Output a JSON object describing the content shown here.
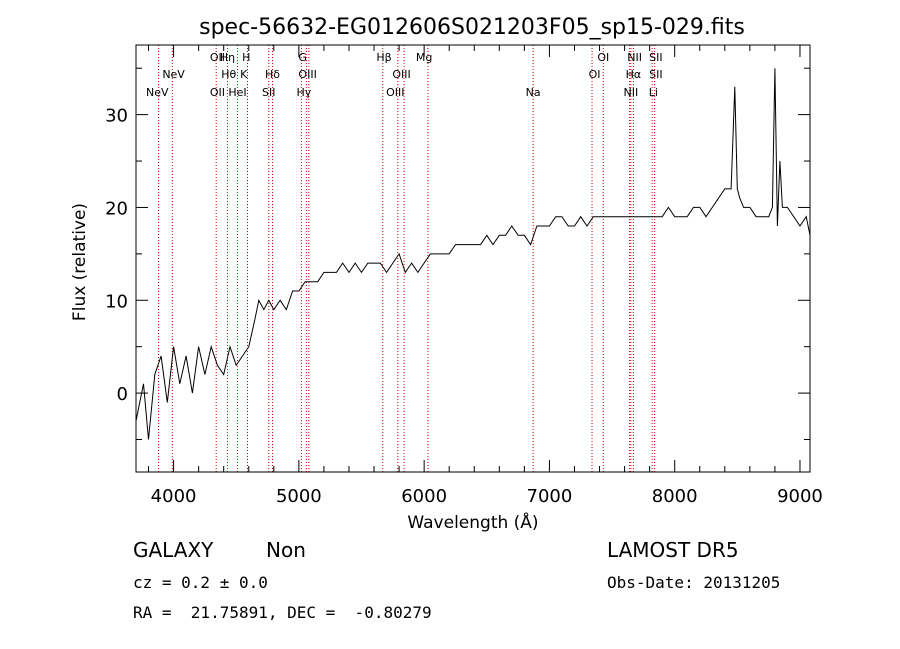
{
  "chart_data": {
    "type": "line",
    "title": "spec-56632-EG012606S021203F05_sp15-029.fits",
    "xlabel": "Wavelength (Å)",
    "ylabel": "Flux (relative)",
    "xlim": [
      3700,
      9080
    ],
    "ylim": [
      -8.5,
      37.5
    ],
    "xticks": [
      4000,
      5000,
      6000,
      7000,
      8000,
      9000
    ],
    "yticks": [
      0,
      10,
      20,
      30
    ],
    "grid": false,
    "series": [
      {
        "x": [
          3700,
          3760,
          3800,
          3850,
          3900,
          3950,
          4000,
          4050,
          4100,
          4150,
          4200,
          4250,
          4300,
          4350,
          4400,
          4450,
          4500,
          4550,
          4600,
          4650,
          4680,
          4720,
          4760,
          4800,
          4850,
          4900,
          4950,
          5000,
          5050,
          5100,
          5150,
          5200,
          5250,
          5300,
          5350,
          5400,
          5450,
          5500,
          5550,
          5600,
          5650,
          5700,
          5750,
          5800,
          5850,
          5900,
          5950,
          6000,
          6050,
          6100,
          6150,
          6200,
          6250,
          6300,
          6350,
          6400,
          6450,
          6500,
          6550,
          6600,
          6650,
          6700,
          6750,
          6800,
          6850,
          6900,
          6950,
          7000,
          7050,
          7100,
          7150,
          7200,
          7250,
          7300,
          7350,
          7400,
          7450,
          7500,
          7550,
          7600,
          7650,
          7700,
          7750,
          7800,
          7850,
          7900,
          7950,
          8000,
          8050,
          8100,
          8150,
          8200,
          8250,
          8300,
          8350,
          8400,
          8450,
          8480,
          8500,
          8520,
          8550,
          8600,
          8650,
          8700,
          8750,
          8780,
          8800,
          8820,
          8840,
          8860,
          8900,
          8950,
          9000,
          9050,
          9080
        ],
        "y": [
          -3,
          1,
          -5,
          2,
          4,
          -1,
          5,
          1,
          4,
          0,
          5,
          2,
          5,
          3,
          2,
          5,
          3,
          4,
          5,
          8,
          10,
          9,
          10,
          9,
          10,
          9,
          11,
          11,
          12,
          12,
          12,
          13,
          13,
          13,
          14,
          13,
          14,
          13,
          14,
          14,
          14,
          13,
          14,
          15,
          13,
          14,
          13,
          14,
          15,
          15,
          15,
          15,
          16,
          16,
          16,
          16,
          16,
          17,
          16,
          17,
          17,
          18,
          17,
          17,
          16,
          18,
          18,
          18,
          19,
          19,
          18,
          18,
          19,
          18,
          19,
          19,
          19,
          19,
          19,
          19,
          19,
          19,
          19,
          19,
          19,
          19,
          20,
          19,
          19,
          19,
          20,
          20,
          19,
          20,
          21,
          22,
          22,
          33,
          22,
          21,
          20,
          20,
          19,
          19,
          19,
          20,
          35,
          18,
          25,
          20,
          20,
          19,
          18,
          19,
          17
        ]
      }
    ],
    "spectral_lines": [
      {
        "label": "NeV",
        "wavelength": 3870,
        "row": 3
      },
      {
        "label": "NeV",
        "wavelength": 4000,
        "row": 2
      },
      {
        "label": "OII",
        "wavelength": 4350,
        "row": 1
      },
      {
        "label": "OII",
        "wavelength": 4350,
        "row": 3
      },
      {
        "label": "Hη",
        "wavelength": 4430,
        "row": 1
      },
      {
        "label": "Hθ",
        "wavelength": 4440,
        "row": 2
      },
      {
        "label": "HeI",
        "wavelength": 4510,
        "row": 3
      },
      {
        "label": "H",
        "wavelength": 4580,
        "row": 1
      },
      {
        "label": "K",
        "wavelength": 4560,
        "row": 2
      },
      {
        "label": "Hδ",
        "wavelength": 4790,
        "row": 2
      },
      {
        "label": "SII",
        "wavelength": 4760,
        "row": 3
      },
      {
        "label": "G",
        "wavelength": 5030,
        "row": 1
      },
      {
        "label": "OIII",
        "wavelength": 5070,
        "row": 2
      },
      {
        "label": "Hγ",
        "wavelength": 5040,
        "row": 3
      },
      {
        "label": "Hβ",
        "wavelength": 5680,
        "row": 1
      },
      {
        "label": "OIII",
        "wavelength": 5820,
        "row": 2
      },
      {
        "label": "OIII",
        "wavelength": 5770,
        "row": 3
      },
      {
        "label": "Mg",
        "wavelength": 6000,
        "row": 1
      },
      {
        "label": "Na",
        "wavelength": 6870,
        "row": 3
      },
      {
        "label": "OI",
        "wavelength": 7430,
        "row": 1
      },
      {
        "label": "OI",
        "wavelength": 7360,
        "row": 2
      },
      {
        "label": "NII",
        "wavelength": 7680,
        "row": 1
      },
      {
        "label": "Hα",
        "wavelength": 7670,
        "row": 2
      },
      {
        "label": "NII",
        "wavelength": 7650,
        "row": 3
      },
      {
        "label": "SII",
        "wavelength": 7850,
        "row": 1
      },
      {
        "label": "SII",
        "wavelength": 7850,
        "row": 2
      },
      {
        "label": "Li",
        "wavelength": 7830,
        "row": 3
      }
    ],
    "line_marker_wavelengths": [
      3880,
      3990,
      4340,
      4430,
      4510,
      4590,
      4760,
      4790,
      5020,
      5060,
      5080,
      5670,
      5790,
      5840,
      6030,
      6870,
      7340,
      7430,
      7640,
      7650,
      7670,
      7820,
      7840
    ],
    "colors": {
      "spectrum": "#000000",
      "line_marker": "#cc0000",
      "axes": "#000000"
    }
  },
  "info": {
    "object_type": "GALAXY",
    "subclass": "Non",
    "survey": "LAMOST DR5",
    "cz": "cz = 0.2 ± 0.0",
    "obs_date": "Obs-Date: 20131205",
    "coords": "RA =  21.75891, DEC =  -0.80279"
  }
}
